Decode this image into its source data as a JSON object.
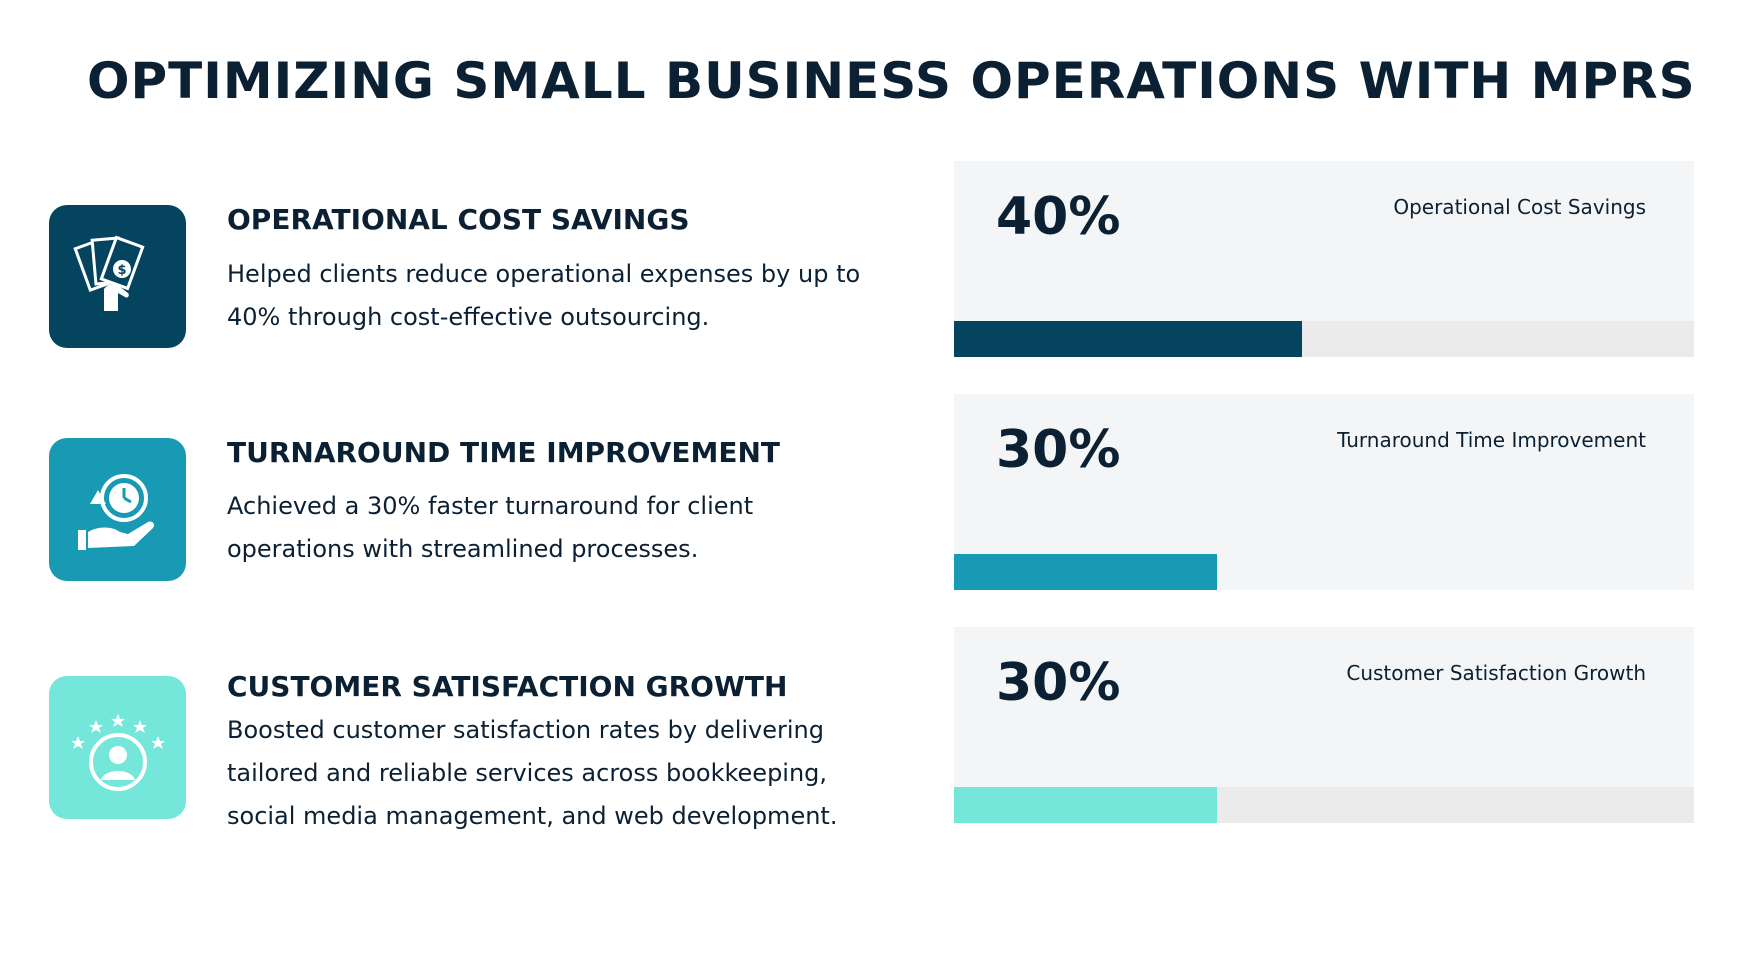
{
  "title": "OPTIMIZING SMALL BUSINESS OPERATIONS WITH MPRS",
  "items": [
    {
      "title": "OPERATIONAL COST SAVINGS",
      "description": "Helped clients reduce operational expenses by up to 40% through cost-effective outsourcing.",
      "icon": "money-hand-icon",
      "color": "#05445e"
    },
    {
      "title": "TURNAROUND TIME IMPROVEMENT",
      "description": "Achieved a 30% faster turnaround for client operations with streamlined processes.",
      "icon": "clock-hand-icon",
      "color": "#189ab4"
    },
    {
      "title": "CUSTOMER SATISFACTION GROWTH",
      "description": "Boosted customer satisfaction rates by delivering tailored and reliable services across bookkeeping, social media management, and web development.",
      "icon": "customer-stars-icon",
      "color": "#75e6da"
    }
  ],
  "stats": [
    {
      "value": "40%",
      "label": "Operational Cost Savings",
      "fill_fraction": 0.47,
      "color": "#05445e"
    },
    {
      "value": "30%",
      "label": "Turnaround Time Improvement",
      "fill_fraction": 0.355,
      "color": "#189ab4"
    },
    {
      "value": "30%",
      "label": "Customer Satisfaction Growth",
      "fill_fraction": 0.355,
      "color": "#75e6da"
    }
  ]
}
